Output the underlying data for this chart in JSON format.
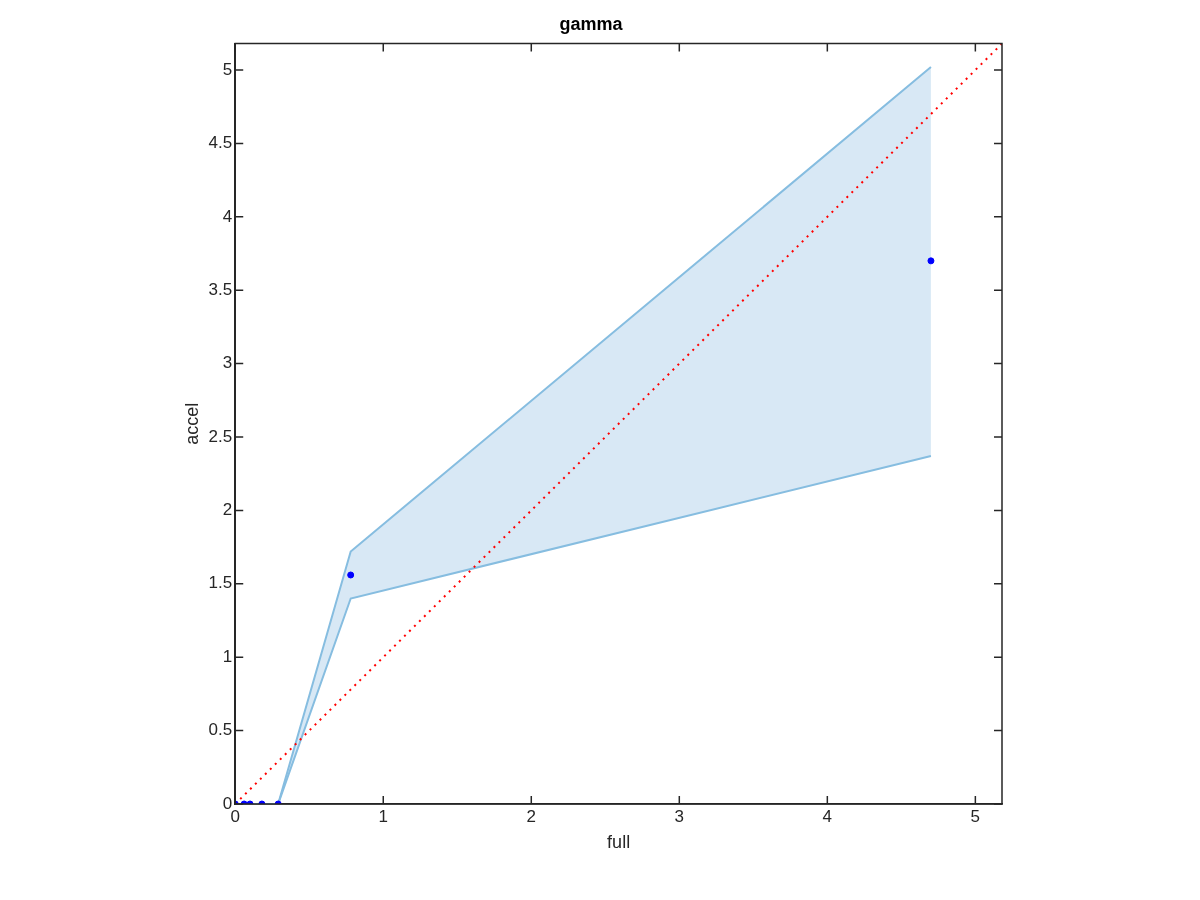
{
  "chart_data": {
    "type": "scatter",
    "title": "gamma",
    "xlabel": "full",
    "ylabel": "accel",
    "xlim": [
      0,
      5.18
    ],
    "ylim": [
      0,
      5.18
    ],
    "xticks": [
      0,
      1,
      2,
      3,
      4,
      5
    ],
    "yticks": [
      0,
      0.5,
      1,
      1.5,
      2,
      2.5,
      3,
      3.5,
      4,
      4.5,
      5
    ],
    "grid": false,
    "legend": false,
    "marker": "circle",
    "series": [
      {
        "type": "scatter",
        "color": "#0000ff",
        "x": [
          0,
          0.06,
          0.1,
          0.18,
          0.29,
          0.78,
          4.7
        ],
        "values": [
          0,
          0,
          0,
          0,
          0,
          1.56,
          3.7
        ],
        "lower": [
          0,
          0,
          0,
          0,
          0,
          1.4,
          2.37
        ],
        "upper": [
          0,
          0,
          0,
          0,
          0,
          1.72,
          5.02
        ]
      },
      {
        "type": "line",
        "color": "#ff0000",
        "line_style": "dotted",
        "marker": "none",
        "x": [
          0,
          5.18
        ],
        "values": [
          0,
          5.18
        ]
      }
    ]
  }
}
